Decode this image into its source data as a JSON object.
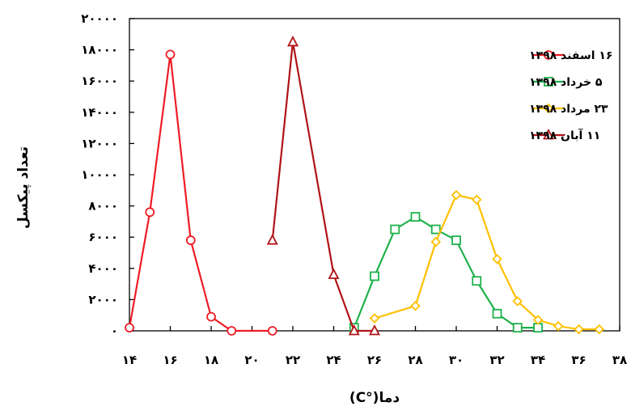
{
  "chart_data": {
    "type": "line",
    "title": "",
    "xlabel": "دما(°C)",
    "ylabel": "تعداد پیکسل",
    "xlim": [
      14,
      38
    ],
    "ylim": [
      0,
      20000
    ],
    "x_ticks": [
      14,
      16,
      18,
      20,
      22,
      24,
      26,
      28,
      30,
      32,
      34,
      36,
      38
    ],
    "y_ticks": [
      0,
      2000,
      4000,
      6000,
      8000,
      10000,
      12000,
      14000,
      16000,
      18000,
      20000
    ],
    "x_tick_labels": [
      "۱۴",
      "۱۶",
      "۱۸",
      "۲۰",
      "۲۲",
      "۲۴",
      "۲۶",
      "۲۸",
      "۳۰",
      "۳۲",
      "۳۴",
      "۳۶",
      "۳۸"
    ],
    "y_tick_labels": [
      "۰",
      "۲۰۰۰",
      "۴۰۰۰",
      "۶۰۰۰",
      "۸۰۰۰",
      "۱۰۰۰۰",
      "۱۲۰۰۰",
      "۱۴۰۰۰",
      "۱۶۰۰۰",
      "۱۸۰۰۰",
      "۲۰۰۰۰"
    ],
    "grid": false,
    "legend_position": "top-right",
    "series": [
      {
        "name": "۱۶ اسفند ۱۳۹۸",
        "color": "#ee1c25",
        "marker": "circle",
        "x": [
          14,
          15,
          16,
          17,
          18,
          19,
          21
        ],
        "y": [
          200,
          7600,
          17700,
          5800,
          900,
          0,
          0
        ]
      },
      {
        "name": "۵ خرداد ۱۳۹۸",
        "color": "#1fb14c",
        "marker": "square",
        "x": [
          25,
          26,
          27,
          28,
          29,
          30,
          31,
          32,
          33,
          34
        ],
        "y": [
          200,
          3500,
          6500,
          7300,
          6500,
          5800,
          3200,
          1100,
          200,
          200
        ]
      },
      {
        "name": "۲۳ مرداد ۱۳۹۸",
        "color": "#ffc000",
        "marker": "diamond",
        "x": [
          26,
          28,
          29,
          30,
          31,
          32,
          33,
          34,
          35,
          36,
          37
        ],
        "y": [
          800,
          1600,
          5700,
          8700,
          8400,
          4600,
          1900,
          700,
          300,
          100,
          100
        ]
      },
      {
        "name": "۱۱ آبان ۱۳۹۸",
        "color": "#b01317",
        "marker": "triangle",
        "x": [
          21,
          22,
          24,
          25,
          26
        ],
        "y": [
          5800,
          18500,
          3600,
          0,
          0
        ]
      }
    ]
  }
}
